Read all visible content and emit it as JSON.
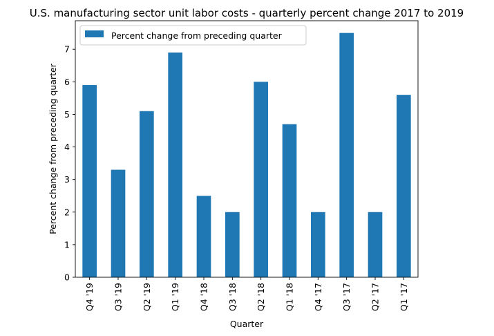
{
  "chart_data": {
    "type": "bar",
    "title": "U.S. manufacturing sector unit labor costs - quarterly percent change 2017 to 2019",
    "xlabel": "Quarter",
    "ylabel": "Percent change from preceding quarter",
    "categories": [
      "Q4 '19",
      "Q3 '19",
      "Q2 '19",
      "Q1 '19",
      "Q4 '18",
      "Q3 '18",
      "Q2 '18",
      "Q1 '18",
      "Q4 '17",
      "Q3 '17",
      "Q2 '17",
      "Q1 '17"
    ],
    "series": [
      {
        "name": "Percent change from preceding quarter",
        "values": [
          5.9,
          3.3,
          5.1,
          6.9,
          2.5,
          2.0,
          6.0,
          4.7,
          2.0,
          7.5,
          2.0,
          5.6
        ],
        "color": "#1f77b4"
      }
    ],
    "ylim": [
      0,
      7.875
    ],
    "yticks": [
      0,
      1,
      2,
      3,
      4,
      5,
      6,
      7
    ],
    "grid": false,
    "legend": "top-left"
  }
}
